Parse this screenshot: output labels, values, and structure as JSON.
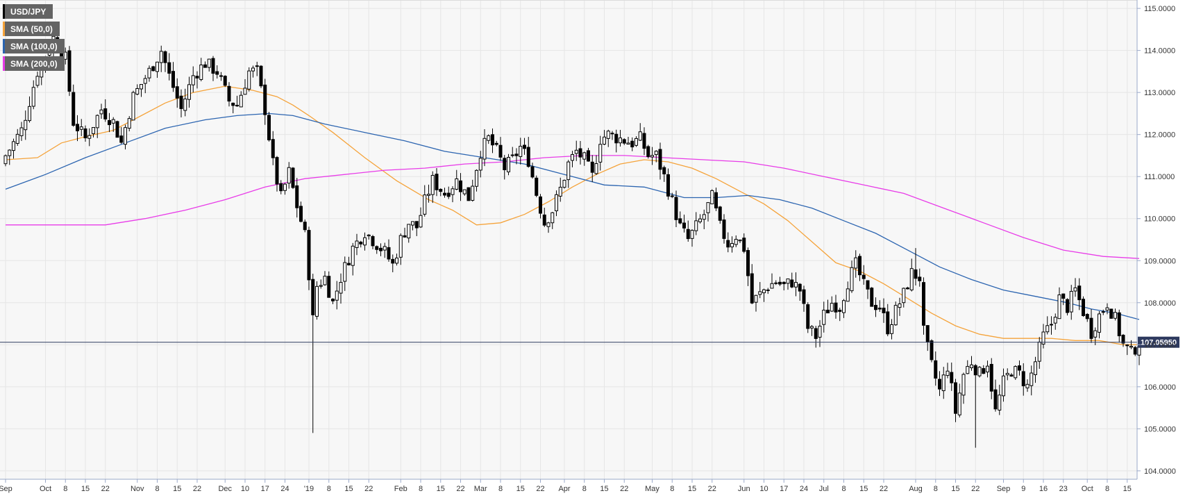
{
  "chart_data": {
    "type": "candlestick",
    "title": "USD/JPY",
    "legend_position": "top-left",
    "grid": true,
    "colors": {
      "background": "#f7f7f7",
      "grid": "#e6e6e6",
      "axis": "#9aa8c8",
      "candle_up_fill": "#ffffff",
      "candle_down_fill": "#000000",
      "current_price_line": "#2e3a5f",
      "sma50": "#f5a33a",
      "sma100": "#2b64b0",
      "sma200": "#e83be8"
    },
    "legend": [
      {
        "label": "USD/JPY",
        "color": "#000000"
      },
      {
        "label": "SMA (50,0)",
        "color": "#f5a33a"
      },
      {
        "label": "SMA (100,0)",
        "color": "#2b64b0"
      },
      {
        "label": "SMA (200,0)",
        "color": "#e83be8"
      }
    ],
    "y_axis": {
      "min": 103.8,
      "max": 115.2,
      "ticks": [
        "104.0000",
        "105.0000",
        "106.0000",
        "107.0000",
        "108.0000",
        "109.0000",
        "110.0000",
        "111.0000",
        "112.0000",
        "113.0000",
        "114.0000",
        "115.0000"
      ]
    },
    "current_price": {
      "value": 107.0595,
      "label": "107.05950"
    },
    "x_axis": {
      "total_bars": 285,
      "ticks": [
        {
          "label": "Sep",
          "bar": 0
        },
        {
          "label": "Oct",
          "bar": 10
        },
        {
          "label": "8",
          "bar": 15
        },
        {
          "label": "15",
          "bar": 20
        },
        {
          "label": "22",
          "bar": 25
        },
        {
          "label": "Nov",
          "bar": 33
        },
        {
          "label": "8",
          "bar": 38
        },
        {
          "label": "15",
          "bar": 43
        },
        {
          "label": "22",
          "bar": 48
        },
        {
          "label": "Dec",
          "bar": 55
        },
        {
          "label": "10",
          "bar": 60
        },
        {
          "label": "17",
          "bar": 65
        },
        {
          "label": "24",
          "bar": 70
        },
        {
          "label": "'19",
          "bar": 76
        },
        {
          "label": "8",
          "bar": 81
        },
        {
          "label": "15",
          "bar": 86
        },
        {
          "label": "22",
          "bar": 91
        },
        {
          "label": "Feb",
          "bar": 99
        },
        {
          "label": "8",
          "bar": 104
        },
        {
          "label": "15",
          "bar": 109
        },
        {
          "label": "22",
          "bar": 114
        },
        {
          "label": "Mar",
          "bar": 119
        },
        {
          "label": "8",
          "bar": 124
        },
        {
          "label": "15",
          "bar": 129
        },
        {
          "label": "22",
          "bar": 134
        },
        {
          "label": "Apr",
          "bar": 140
        },
        {
          "label": "8",
          "bar": 145
        },
        {
          "label": "15",
          "bar": 150
        },
        {
          "label": "22",
          "bar": 155
        },
        {
          "label": "May",
          "bar": 162
        },
        {
          "label": "8",
          "bar": 167
        },
        {
          "label": "15",
          "bar": 172
        },
        {
          "label": "22",
          "bar": 177
        },
        {
          "label": "Jun",
          "bar": 185
        },
        {
          "label": "10",
          "bar": 190
        },
        {
          "label": "17",
          "bar": 195
        },
        {
          "label": "24",
          "bar": 200
        },
        {
          "label": "Jul",
          "bar": 205
        },
        {
          "label": "8",
          "bar": 210
        },
        {
          "label": "15",
          "bar": 215
        },
        {
          "label": "22",
          "bar": 220
        },
        {
          "label": "Aug",
          "bar": 228
        },
        {
          "label": "8",
          "bar": 233
        },
        {
          "label": "15",
          "bar": 238
        },
        {
          "label": "22",
          "bar": 243
        },
        {
          "label": "Sep",
          "bar": 250
        },
        {
          "label": "9",
          "bar": 255
        },
        {
          "label": "16",
          "bar": 260
        },
        {
          "label": "23",
          "bar": 265
        },
        {
          "label": "Oct",
          "bar": 271
        },
        {
          "label": "8",
          "bar": 276
        },
        {
          "label": "15",
          "bar": 281
        }
      ]
    },
    "price_path": [
      {
        "bar": 0,
        "close": 111.5
      },
      {
        "bar": 4,
        "close": 112.1
      },
      {
        "bar": 8,
        "close": 113.5
      },
      {
        "bar": 12,
        "close": 114.3
      },
      {
        "bar": 15,
        "close": 113.8
      },
      {
        "bar": 17,
        "close": 112.3
      },
      {
        "bar": 20,
        "close": 111.9
      },
      {
        "bar": 24,
        "close": 112.6
      },
      {
        "bar": 27,
        "close": 112.3
      },
      {
        "bar": 29,
        "close": 111.8
      },
      {
        "bar": 32,
        "close": 112.9
      },
      {
        "bar": 36,
        "close": 113.5
      },
      {
        "bar": 39,
        "close": 114.0
      },
      {
        "bar": 41,
        "close": 113.4
      },
      {
        "bar": 44,
        "close": 112.6
      },
      {
        "bar": 47,
        "close": 113.4
      },
      {
        "bar": 50,
        "close": 113.7
      },
      {
        "bar": 53,
        "close": 113.5
      },
      {
        "bar": 56,
        "close": 112.8
      },
      {
        "bar": 58,
        "close": 112.7
      },
      {
        "bar": 61,
        "close": 113.5
      },
      {
        "bar": 63,
        "close": 113.5
      },
      {
        "bar": 65,
        "close": 112.6
      },
      {
        "bar": 67,
        "close": 111.3
      },
      {
        "bar": 69,
        "close": 110.5
      },
      {
        "bar": 71,
        "close": 111.1
      },
      {
        "bar": 73,
        "close": 110.3
      },
      {
        "bar": 75,
        "close": 109.6
      },
      {
        "bar": 76,
        "close": 108.7
      },
      {
        "bar": 77,
        "close": 107.6
      },
      {
        "bar": 78,
        "close": 108.4
      },
      {
        "bar": 80,
        "close": 108.6
      },
      {
        "bar": 82,
        "close": 108.0
      },
      {
        "bar": 84,
        "close": 108.6
      },
      {
        "bar": 87,
        "close": 109.3
      },
      {
        "bar": 90,
        "close": 109.7
      },
      {
        "bar": 92,
        "close": 109.5
      },
      {
        "bar": 95,
        "close": 109.2
      },
      {
        "bar": 97,
        "close": 108.9
      },
      {
        "bar": 99,
        "close": 109.5
      },
      {
        "bar": 101,
        "close": 109.9
      },
      {
        "bar": 103,
        "close": 109.8
      },
      {
        "bar": 105,
        "close": 110.4
      },
      {
        "bar": 107,
        "close": 110.9
      },
      {
        "bar": 110,
        "close": 110.6
      },
      {
        "bar": 113,
        "close": 110.9
      },
      {
        "bar": 116,
        "close": 110.5
      },
      {
        "bar": 119,
        "close": 111.6
      },
      {
        "bar": 121,
        "close": 111.9
      },
      {
        "bar": 123,
        "close": 111.6
      },
      {
        "bar": 125,
        "close": 111.2
      },
      {
        "bar": 127,
        "close": 111.4
      },
      {
        "bar": 129,
        "close": 111.7
      },
      {
        "bar": 131,
        "close": 111.4
      },
      {
        "bar": 133,
        "close": 110.6
      },
      {
        "bar": 135,
        "close": 109.9
      },
      {
        "bar": 137,
        "close": 110.2
      },
      {
        "bar": 139,
        "close": 110.7
      },
      {
        "bar": 141,
        "close": 111.3
      },
      {
        "bar": 143,
        "close": 111.6
      },
      {
        "bar": 145,
        "close": 111.4
      },
      {
        "bar": 147,
        "close": 111.0
      },
      {
        "bar": 149,
        "close": 111.9
      },
      {
        "bar": 151,
        "close": 112.0
      },
      {
        "bar": 154,
        "close": 111.9
      },
      {
        "bar": 157,
        "close": 111.8
      },
      {
        "bar": 159,
        "close": 111.9
      },
      {
        "bar": 161,
        "close": 111.5
      },
      {
        "bar": 163,
        "close": 111.5
      },
      {
        "bar": 165,
        "close": 111.0
      },
      {
        "bar": 167,
        "close": 110.4
      },
      {
        "bar": 169,
        "close": 109.8
      },
      {
        "bar": 171,
        "close": 109.5
      },
      {
        "bar": 173,
        "close": 109.8
      },
      {
        "bar": 175,
        "close": 110.1
      },
      {
        "bar": 177,
        "close": 110.5
      },
      {
        "bar": 179,
        "close": 109.8
      },
      {
        "bar": 181,
        "close": 109.4
      },
      {
        "bar": 183,
        "close": 109.6
      },
      {
        "bar": 185,
        "close": 109.3
      },
      {
        "bar": 187,
        "close": 108.0
      },
      {
        "bar": 189,
        "close": 108.2
      },
      {
        "bar": 191,
        "close": 108.4
      },
      {
        "bar": 193,
        "close": 108.5
      },
      {
        "bar": 195,
        "close": 108.4
      },
      {
        "bar": 197,
        "close": 108.5
      },
      {
        "bar": 199,
        "close": 108.3
      },
      {
        "bar": 201,
        "close": 107.4
      },
      {
        "bar": 203,
        "close": 107.2
      },
      {
        "bar": 205,
        "close": 107.7
      },
      {
        "bar": 207,
        "close": 108.0
      },
      {
        "bar": 209,
        "close": 107.9
      },
      {
        "bar": 211,
        "close": 108.5
      },
      {
        "bar": 213,
        "close": 108.9
      },
      {
        "bar": 215,
        "close": 108.4
      },
      {
        "bar": 217,
        "close": 108.0
      },
      {
        "bar": 219,
        "close": 107.9
      },
      {
        "bar": 221,
        "close": 107.4
      },
      {
        "bar": 223,
        "close": 107.8
      },
      {
        "bar": 225,
        "close": 108.2
      },
      {
        "bar": 227,
        "close": 108.7
      },
      {
        "bar": 229,
        "close": 108.6
      },
      {
        "bar": 230,
        "close": 107.3
      },
      {
        "bar": 232,
        "close": 106.5
      },
      {
        "bar": 234,
        "close": 105.9
      },
      {
        "bar": 236,
        "close": 106.5
      },
      {
        "bar": 238,
        "close": 105.4
      },
      {
        "bar": 240,
        "close": 106.3
      },
      {
        "bar": 242,
        "close": 106.6
      },
      {
        "bar": 244,
        "close": 106.3
      },
      {
        "bar": 246,
        "close": 106.6
      },
      {
        "bar": 248,
        "close": 105.4
      },
      {
        "bar": 250,
        "close": 106.1
      },
      {
        "bar": 252,
        "close": 106.4
      },
      {
        "bar": 254,
        "close": 106.3
      },
      {
        "bar": 256,
        "close": 106.0
      },
      {
        "bar": 258,
        "close": 106.6
      },
      {
        "bar": 260,
        "close": 107.2
      },
      {
        "bar": 262,
        "close": 107.5
      },
      {
        "bar": 264,
        "close": 108.1
      },
      {
        "bar": 266,
        "close": 107.9
      },
      {
        "bar": 268,
        "close": 108.3
      },
      {
        "bar": 270,
        "close": 107.8
      },
      {
        "bar": 272,
        "close": 107.3
      },
      {
        "bar": 274,
        "close": 107.7
      },
      {
        "bar": 276,
        "close": 108.0
      },
      {
        "bar": 278,
        "close": 107.6
      },
      {
        "bar": 280,
        "close": 107.0
      },
      {
        "bar": 282,
        "close": 106.8
      },
      {
        "bar": 284,
        "close": 107.06
      }
    ],
    "series": [
      {
        "name": "SMA (50,0)",
        "color": "#f5a33a",
        "points": [
          [
            0,
            111.4
          ],
          [
            8,
            111.45
          ],
          [
            14,
            111.8
          ],
          [
            20,
            111.95
          ],
          [
            27,
            112.1
          ],
          [
            33,
            112.4
          ],
          [
            40,
            112.75
          ],
          [
            47,
            113.0
          ],
          [
            55,
            113.15
          ],
          [
            62,
            113.05
          ],
          [
            68,
            112.9
          ],
          [
            72,
            112.7
          ],
          [
            76,
            112.45
          ],
          [
            82,
            112.05
          ],
          [
            90,
            111.45
          ],
          [
            98,
            110.9
          ],
          [
            106,
            110.45
          ],
          [
            112,
            110.2
          ],
          [
            118,
            109.85
          ],
          [
            124,
            109.9
          ],
          [
            130,
            110.1
          ],
          [
            136,
            110.4
          ],
          [
            142,
            110.75
          ],
          [
            148,
            111.05
          ],
          [
            154,
            111.3
          ],
          [
            160,
            111.4
          ],
          [
            166,
            111.35
          ],
          [
            172,
            111.2
          ],
          [
            178,
            110.95
          ],
          [
            184,
            110.65
          ],
          [
            190,
            110.35
          ],
          [
            196,
            109.95
          ],
          [
            202,
            109.45
          ],
          [
            208,
            108.95
          ],
          [
            214,
            108.75
          ],
          [
            220,
            108.45
          ],
          [
            226,
            108.1
          ],
          [
            232,
            107.75
          ],
          [
            238,
            107.45
          ],
          [
            244,
            107.25
          ],
          [
            250,
            107.15
          ],
          [
            256,
            107.15
          ],
          [
            262,
            107.15
          ],
          [
            268,
            107.1
          ],
          [
            274,
            107.1
          ],
          [
            280,
            107.0
          ],
          [
            284,
            107.0
          ]
        ]
      },
      {
        "name": "SMA (100,0)",
        "color": "#2b64b0",
        "points": [
          [
            0,
            110.7
          ],
          [
            10,
            111.05
          ],
          [
            20,
            111.45
          ],
          [
            30,
            111.8
          ],
          [
            40,
            112.15
          ],
          [
            50,
            112.35
          ],
          [
            58,
            112.45
          ],
          [
            66,
            112.5
          ],
          [
            72,
            112.45
          ],
          [
            80,
            112.25
          ],
          [
            90,
            112.05
          ],
          [
            100,
            111.85
          ],
          [
            110,
            111.6
          ],
          [
            120,
            111.45
          ],
          [
            130,
            111.3
          ],
          [
            140,
            111.05
          ],
          [
            150,
            110.8
          ],
          [
            160,
            110.75
          ],
          [
            170,
            110.5
          ],
          [
            178,
            110.5
          ],
          [
            186,
            110.55
          ],
          [
            194,
            110.45
          ],
          [
            202,
            110.25
          ],
          [
            210,
            109.95
          ],
          [
            218,
            109.65
          ],
          [
            226,
            109.25
          ],
          [
            234,
            108.85
          ],
          [
            242,
            108.55
          ],
          [
            250,
            108.3
          ],
          [
            258,
            108.15
          ],
          [
            266,
            108.0
          ],
          [
            272,
            107.85
          ],
          [
            278,
            107.75
          ],
          [
            284,
            107.6
          ]
        ]
      },
      {
        "name": "SMA (200,0)",
        "color": "#e83be8",
        "points": [
          [
            0,
            109.85
          ],
          [
            15,
            109.85
          ],
          [
            25,
            109.85
          ],
          [
            35,
            110.0
          ],
          [
            45,
            110.2
          ],
          [
            55,
            110.45
          ],
          [
            65,
            110.75
          ],
          [
            75,
            110.95
          ],
          [
            85,
            111.05
          ],
          [
            95,
            111.15
          ],
          [
            105,
            111.2
          ],
          [
            115,
            111.3
          ],
          [
            125,
            111.35
          ],
          [
            135,
            111.45
          ],
          [
            145,
            111.5
          ],
          [
            155,
            111.5
          ],
          [
            165,
            111.45
          ],
          [
            175,
            111.4
          ],
          [
            185,
            111.35
          ],
          [
            195,
            111.2
          ],
          [
            205,
            111.0
          ],
          [
            215,
            110.8
          ],
          [
            225,
            110.6
          ],
          [
            235,
            110.25
          ],
          [
            245,
            109.9
          ],
          [
            255,
            109.55
          ],
          [
            265,
            109.25
          ],
          [
            275,
            109.1
          ],
          [
            284,
            109.05
          ]
        ]
      }
    ]
  }
}
